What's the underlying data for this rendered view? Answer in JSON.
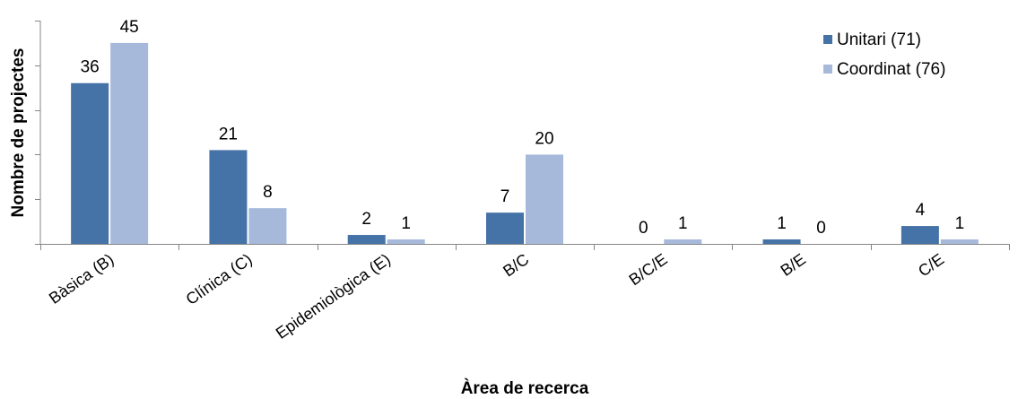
{
  "chart_data": {
    "type": "bar",
    "xlabel": "Àrea de recerca",
    "ylabel": "Nombre de projectes",
    "categories": [
      "Bàsica (B)",
      "Clínica (C)",
      "Epidemiològica (E)",
      "B/C",
      "B/C/E",
      "B/E",
      "C/E"
    ],
    "series": [
      {
        "name": "Unitari (71)",
        "values": [
          36,
          21,
          2,
          7,
          0,
          1,
          4
        ],
        "color": "#4572a7"
      },
      {
        "name": "Coordinat (76)",
        "values": [
          45,
          8,
          1,
          20,
          1,
          0,
          1
        ],
        "color": "#a6b9db"
      }
    ],
    "ylim": [
      0,
      50
    ],
    "grid": false,
    "y_tick_labels": false,
    "legend_position": "top-right",
    "x_tick_rotation": -35
  }
}
